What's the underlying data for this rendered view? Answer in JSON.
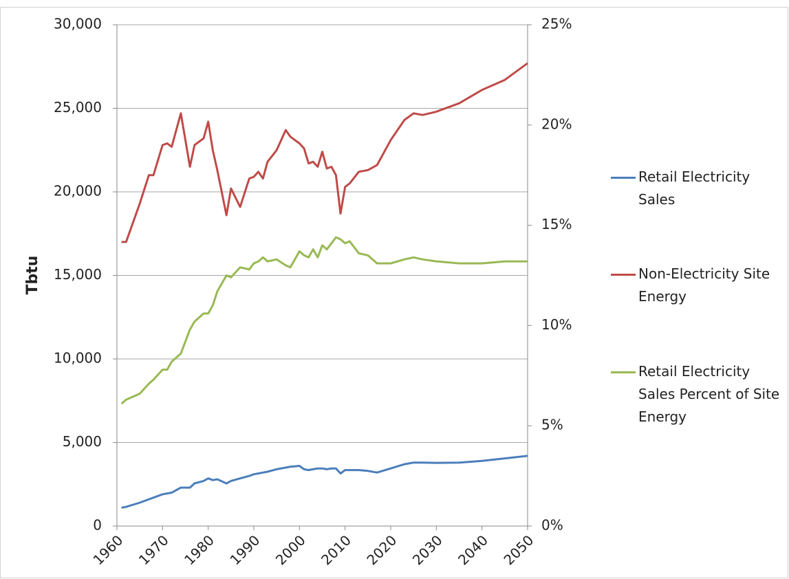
{
  "chart_data": {
    "type": "line",
    "y_label": "Tbtu",
    "x": [
      1961,
      1962,
      1965,
      1967,
      1968,
      1970,
      1971,
      1972,
      1974,
      1976,
      1977,
      1979,
      1980,
      1981,
      1982,
      1984,
      1985,
      1987,
      1989,
      1990,
      1991,
      1992,
      1993,
      1995,
      1997,
      1998,
      2000,
      2001,
      2002,
      2003,
      2004,
      2005,
      2006,
      2007,
      2008,
      2009,
      2010,
      2011,
      2013,
      2015,
      2017,
      2020,
      2023,
      2025,
      2027,
      2030,
      2035,
      2040,
      2045,
      2050
    ],
    "series": [
      {
        "name": "Retail Electricity Sales",
        "color": "#4a7ebb",
        "values": [
          1100,
          1150,
          1400,
          1600,
          1700,
          1900,
          1950,
          2000,
          2300,
          2300,
          2550,
          2700,
          2850,
          2750,
          2800,
          2550,
          2700,
          2850,
          3000,
          3100,
          3150,
          3200,
          3250,
          3400,
          3500,
          3550,
          3600,
          3400,
          3350,
          3400,
          3450,
          3450,
          3400,
          3450,
          3450,
          3150,
          3350,
          3350,
          3350,
          3300,
          3200,
          3450,
          3700,
          3800,
          3800,
          3780,
          3800,
          3900,
          4050,
          4200
        ]
      },
      {
        "name": "Non-Electricity Site Energy",
        "color": "#be4b48",
        "values": [
          17000,
          17000,
          19300,
          21000,
          21000,
          22800,
          22900,
          22700,
          24700,
          21500,
          22800,
          23200,
          24200,
          22500,
          21300,
          18600,
          20200,
          19100,
          20800,
          20900,
          21200,
          20800,
          21800,
          22500,
          23700,
          23300,
          22900,
          22600,
          21700,
          21800,
          21500,
          22400,
          21400,
          21500,
          21000,
          18700,
          20300,
          20500,
          21200,
          21300,
          21600,
          23100,
          24300,
          24700,
          24600,
          24800,
          25300,
          26100,
          26700,
          27700
        ]
      },
      {
        "name": "Retail Electricity Sales Percent of Site Energy",
        "color": "#98b954",
        "axis": "y2",
        "values": [
          6.1,
          6.3,
          6.6,
          7.1,
          7.3,
          7.8,
          7.8,
          8.2,
          8.6,
          9.8,
          10.2,
          10.6,
          10.6,
          11.0,
          11.7,
          12.5,
          12.4,
          12.9,
          12.8,
          13.1,
          13.2,
          13.4,
          13.2,
          13.3,
          13.0,
          12.9,
          13.7,
          13.5,
          13.4,
          13.8,
          13.4,
          14.0,
          13.8,
          14.1,
          14.4,
          14.3,
          14.1,
          14.2,
          13.6,
          13.5,
          13.1,
          13.1,
          13.3,
          13.4,
          13.3,
          13.2,
          13.1,
          13.1,
          13.2,
          13.2
        ]
      }
    ],
    "xlim": [
      1960,
      2050
    ],
    "xticks": [
      1960,
      1970,
      1980,
      1990,
      2000,
      2010,
      2020,
      2030,
      2040,
      2050
    ],
    "ylim": [
      0,
      30000
    ],
    "yticks": [
      0,
      {
        "value": 5000,
        "label": "5,000"
      },
      {
        "value": 10000,
        "label": "10,000"
      },
      {
        "value": 15000,
        "label": "15,000"
      },
      {
        "value": 20000,
        "label": "20,000"
      },
      {
        "value": 25000,
        "label": "25,000"
      },
      {
        "value": 30000,
        "label": "30,000"
      }
    ],
    "y2lim": [
      0,
      25
    ],
    "y2ticks": [
      {
        "value": 0,
        "label": "0%"
      },
      {
        "value": 5,
        "label": "5%"
      },
      {
        "value": 10,
        "label": "10%"
      },
      {
        "value": 15,
        "label": "15%"
      },
      {
        "value": 20,
        "label": "20%"
      },
      {
        "value": 25,
        "label": "25%"
      }
    ],
    "grid": true,
    "legend": "right"
  }
}
